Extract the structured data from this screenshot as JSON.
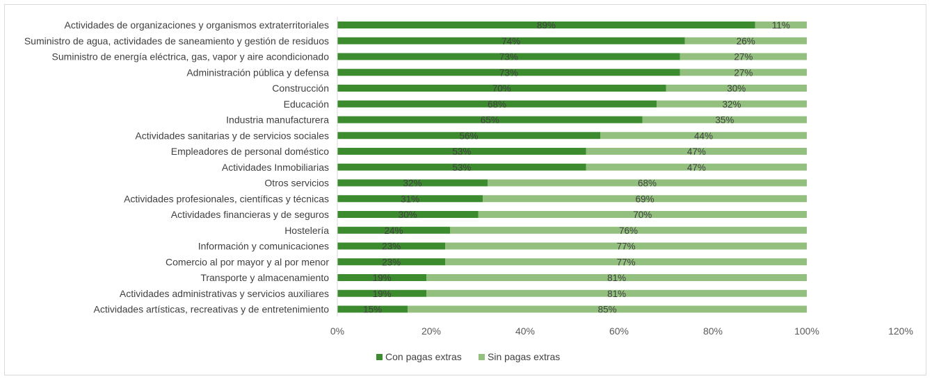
{
  "chart_data": {
    "type": "bar",
    "orientation": "horizontal",
    "stacked": "percent",
    "title": "",
    "categories": [
      "Actividades de organizaciones y organismos extraterritoriales",
      "Suministro de agua, actividades de saneamiento y gestión de residuos",
      "Suministro de energía eléctrica, gas, vapor y aire acondicionado",
      "Administración pública y defensa",
      "Construcción",
      "Educación",
      "Industria manufacturera",
      "Actividades sanitarias y de servicios sociales",
      "Empleadores de personal doméstico",
      "Actividades Inmobiliarias",
      "Otros servicios",
      "Actividades profesionales, científicas y técnicas",
      "Actividades financieras y de seguros",
      "Hostelería",
      "Información y comunicaciones",
      "Comercio al por mayor y al por menor",
      "Transporte y almacenamiento",
      "Actividades administrativas y servicios auxiliares",
      "Actividades artísticas, recreativas y de entretenimiento"
    ],
    "series": [
      {
        "name": "Con pagas extras",
        "color": "#3d8b2f",
        "values": [
          89,
          74,
          73,
          73,
          70,
          68,
          65,
          56,
          53,
          53,
          32,
          31,
          30,
          24,
          23,
          23,
          19,
          19,
          15
        ],
        "labels": [
          "89%",
          "74%",
          "73%",
          "73%",
          "70%",
          "68%",
          "65%",
          "56%",
          "53%",
          "53%",
          "32%",
          "31%",
          "30%",
          "24%",
          "23%",
          "23%",
          "19%",
          "19%",
          "15%"
        ]
      },
      {
        "name": "Sin pagas extras",
        "color": "#93c07f",
        "values": [
          11,
          26,
          27,
          27,
          30,
          32,
          35,
          44,
          47,
          47,
          68,
          69,
          70,
          76,
          77,
          77,
          81,
          81,
          85
        ],
        "labels": [
          "11%",
          "26%",
          "27%",
          "27%",
          "30%",
          "32%",
          "35%",
          "44%",
          "47%",
          "47%",
          "68%",
          "69%",
          "70%",
          "76%",
          "77%",
          "77%",
          "81%",
          "81%",
          "85%"
        ]
      }
    ],
    "x_axis": {
      "min": 0,
      "max": 120,
      "ticks": [
        0,
        20,
        40,
        60,
        80,
        100,
        120
      ],
      "tick_labels": [
        "0%",
        "20%",
        "40%",
        "60%",
        "80%",
        "100%",
        "120%"
      ]
    },
    "grid": false,
    "legend_position": "bottom"
  }
}
